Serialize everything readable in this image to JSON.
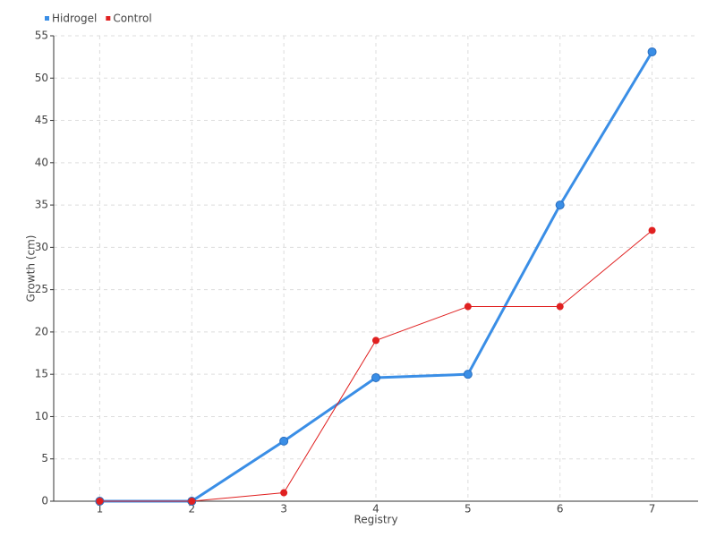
{
  "chart_data": {
    "type": "line",
    "x_label": "Registry",
    "y_label": "Growth (cm)",
    "categories": [
      "1",
      "2",
      "3",
      "4",
      "5",
      "6",
      "7"
    ],
    "series": [
      {
        "name": "Hidrogel",
        "color": "#3a8ee6",
        "values": [
          0,
          0,
          7.1,
          14.6,
          15,
          35,
          53.1
        ]
      },
      {
        "name": "Control",
        "color": "#e02020",
        "values": [
          0,
          0,
          1,
          19,
          23,
          23,
          32
        ]
      }
    ],
    "ylim": [
      0,
      55
    ],
    "yticks": [
      0,
      5,
      10,
      15,
      20,
      25,
      30,
      35,
      40,
      45,
      50,
      55
    ],
    "grid": true,
    "legend": "top-left"
  }
}
